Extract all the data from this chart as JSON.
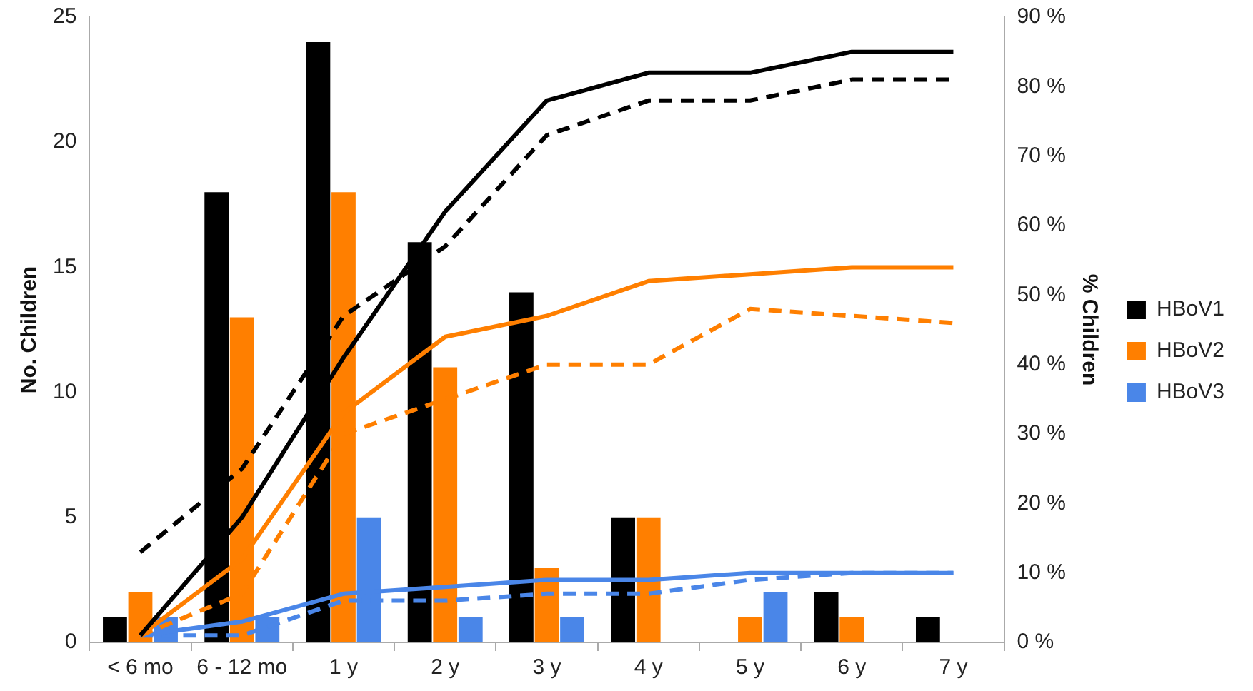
{
  "chart_data": {
    "type": "bar",
    "ylabel": "No. Children",
    "y2label": "% Children",
    "categories": [
      "< 6 mo",
      "6 - 12 mo",
      "1 y",
      "2 y",
      "3 y",
      "4 y",
      "5 y",
      "6 y",
      "7 y"
    ],
    "series": [
      {
        "name": "HBoV1",
        "color": "#000000",
        "values": [
          1,
          18,
          24,
          16,
          14,
          5,
          0,
          2,
          1
        ]
      },
      {
        "name": "HBoV2",
        "color": "#ff7f00",
        "values": [
          2,
          13,
          18,
          11,
          3,
          5,
          1,
          1,
          0
        ]
      },
      {
        "name": "HBoV3",
        "color": "#4a86e8",
        "values": [
          1,
          1,
          5,
          1,
          1,
          0,
          2,
          0,
          0
        ]
      },
      {
        "type": "line",
        "axis": "y2",
        "line_style": "solid",
        "color": "#000000",
        "values": [
          1,
          18,
          41,
          62,
          78,
          82,
          82,
          85,
          85
        ]
      },
      {
        "type": "line",
        "axis": "y2",
        "line_style": "dashed",
        "color": "#000000",
        "values": [
          13,
          25,
          47,
          57,
          73,
          78,
          78,
          81,
          81
        ]
      },
      {
        "type": "line",
        "axis": "y2",
        "line_style": "solid",
        "color": "#ff7f00",
        "values": [
          1,
          12,
          33,
          44,
          47,
          52,
          53,
          54,
          54
        ]
      },
      {
        "type": "line",
        "axis": "y2",
        "line_style": "dashed",
        "color": "#ff7f00",
        "values": [
          1,
          7,
          30,
          35,
          40,
          40,
          48,
          47,
          46
        ]
      },
      {
        "type": "line",
        "axis": "y2",
        "line_style": "solid",
        "color": "#4a86e8",
        "values": [
          1,
          3,
          7,
          8,
          9,
          9,
          10,
          10,
          10
        ]
      },
      {
        "type": "line",
        "axis": "y2",
        "line_style": "dashed",
        "color": "#4a86e8",
        "values": [
          1,
          1,
          6,
          6,
          7,
          7,
          9,
          10,
          10
        ]
      }
    ],
    "ylim": [
      0,
      25
    ],
    "yticks": [
      0,
      5,
      10,
      15,
      20,
      25
    ],
    "y2lim": [
      0,
      90
    ],
    "y2ticks": [
      {
        "value": 0,
        "label": "0 %"
      },
      {
        "value": 10,
        "label": "10 %"
      },
      {
        "value": 20,
        "label": "20 %"
      },
      {
        "value": 30,
        "label": "30 %"
      },
      {
        "value": 40,
        "label": "40 %"
      },
      {
        "value": 50,
        "label": "50 %"
      },
      {
        "value": 60,
        "label": "60 %"
      },
      {
        "value": 70,
        "label": "70 %"
      },
      {
        "value": 80,
        "label": "80 %"
      },
      {
        "value": 90,
        "label": "90 %"
      }
    ],
    "legend": "right",
    "grid": false,
    "marker": "none"
  }
}
